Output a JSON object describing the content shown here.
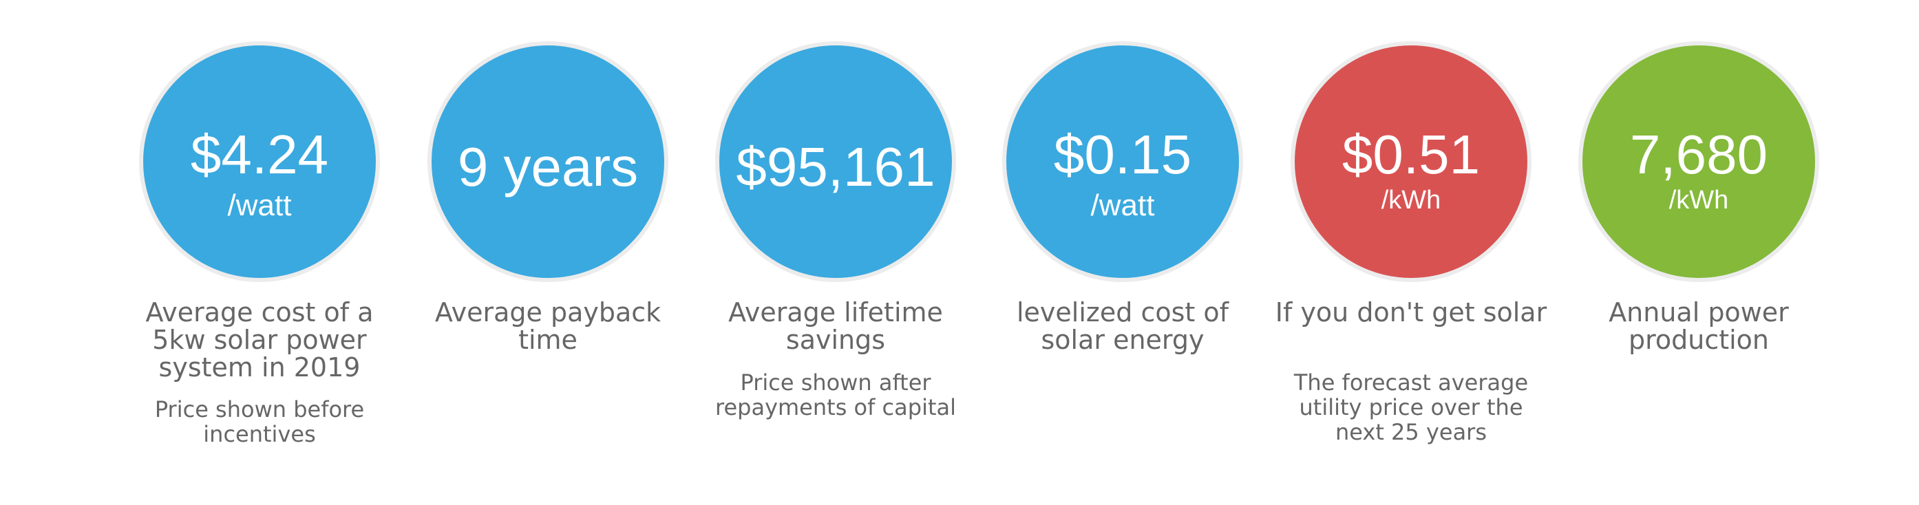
{
  "colors": {
    "blue": "#3aa9df",
    "red": "#d95252",
    "green": "#84b93a",
    "circle_border": "#ececec",
    "caption_text": "#666666"
  },
  "stats": [
    {
      "value": "$4.24",
      "unit": "/watt",
      "title": "Average cost of a 5kw solar power system in 2019",
      "note": "Price shown before incentives",
      "color": "blue"
    },
    {
      "value": "9 years",
      "unit": "",
      "title": "Average payback time",
      "note": "",
      "color": "blue"
    },
    {
      "value": "$95,161",
      "unit": "",
      "title": "Average lifetime savings",
      "note": "Price shown after repayments of capital",
      "color": "blue"
    },
    {
      "value": "$0.15",
      "unit": "/watt",
      "title": "levelized cost of solar energy",
      "note": "",
      "color": "blue"
    },
    {
      "value": "$0.51",
      "unit": "/kWh",
      "title": "If you don't get solar",
      "note": "The forecast average utility price over the next 25 years",
      "color": "red"
    },
    {
      "value": "7,680",
      "unit": "/kWh",
      "title": "Annual power production",
      "note": "",
      "color": "green"
    }
  ]
}
